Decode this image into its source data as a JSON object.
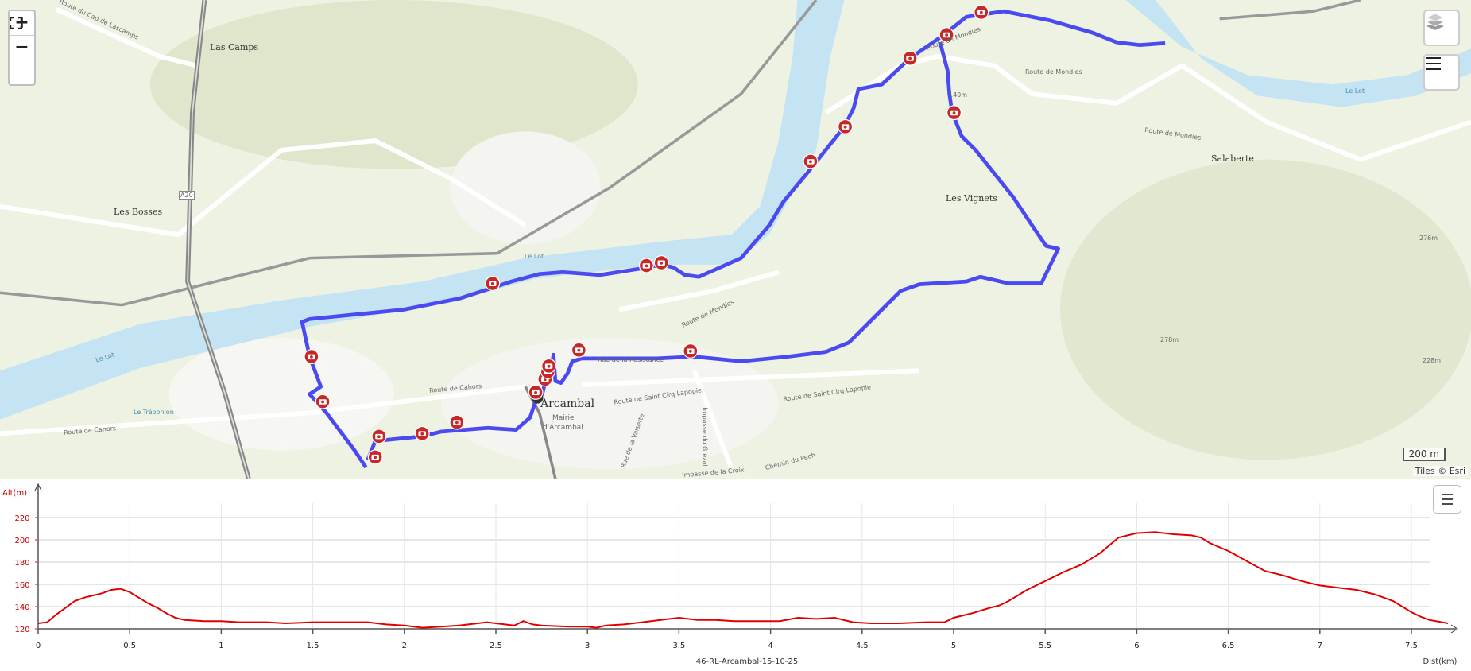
{
  "map": {
    "controls": {
      "zoom_in": "+",
      "zoom_out": "−",
      "fullscreen_icon": "fullscreen-icon",
      "layers_icon": "layers-icon",
      "menu_icon": "menu-icon"
    },
    "places": {
      "las_camps": "Las Camps",
      "les_bosses": "Les Bosses",
      "les_vignets": "Les Vignets",
      "salaberte": "Salaberte",
      "arcambal": "Arcambal",
      "mairie": "Mairie",
      "mairie2": "d'Arcambal"
    },
    "roads": {
      "cap": "Route du Cap de Lascamps",
      "a20": "A20",
      "cahors1": "Route de Cahors",
      "cahors2": "Route de Cahors",
      "mondies1": "Route de Mondies",
      "mondies2": "Route de Mondies",
      "mondies3": "Route de Mondies",
      "mondies4": "Route de Mondies",
      "resistance": "Rue de la Résistance",
      "stcirq1": "Route de Saint Cirq Lapopie",
      "stcirq2": "Route de Saint Cirq Lapopie",
      "croix": "Impasse de la Croix",
      "pech": "Chemin du Pech",
      "lot1": "Le Lot",
      "lot2": "Le Lot",
      "lot3": "Le Lot",
      "trebonlon": "Le Trébonlon",
      "valsette": "Rue de la Valsette",
      "grezal": "Impasse du Grézal"
    },
    "elevations": {
      "e1": "140m",
      "e2": "276m",
      "e3": "278m",
      "e4": "228m"
    },
    "scale": "200 m",
    "attribution": "Tiles © Esri",
    "track_color": "#4a4af0",
    "marker_color": "#c62828",
    "marker_icon": "camera-icon"
  },
  "chart_data": {
    "type": "line",
    "title": "46-RL-Arcambal-15-10-25",
    "xlabel": "Dist(km)",
    "ylabel": "Alt(m)",
    "xlim": [
      0,
      7.75
    ],
    "ylim": [
      120,
      230
    ],
    "xticks": [
      0,
      0.5,
      1,
      1.5,
      2,
      2.5,
      3,
      3.5,
      4,
      4.5,
      5,
      5.5,
      6,
      6.5,
      7,
      7.5
    ],
    "yticks": [
      120,
      140,
      160,
      180,
      200,
      220
    ],
    "grid": true,
    "color": "#e00000",
    "series": [
      {
        "x": [
          0,
          0.05,
          0.1,
          0.15,
          0.2,
          0.25,
          0.3,
          0.35,
          0.4,
          0.45,
          0.5,
          0.55,
          0.6,
          0.65,
          0.7,
          0.75,
          0.8,
          0.9,
          1,
          1.1,
          1.25,
          1.35,
          1.5,
          1.6,
          1.75,
          1.8,
          1.9,
          2,
          2.1,
          2.2,
          2.3,
          2.4,
          2.45,
          2.55,
          2.6,
          2.65,
          2.7,
          2.75,
          2.9,
          3,
          3.05,
          3.1,
          3.2,
          3.3,
          3.4,
          3.5,
          3.6,
          3.7,
          3.8,
          3.9,
          4,
          4.05,
          4.15,
          4.25,
          4.35,
          4.45,
          4.55,
          4.7,
          4.85,
          4.95,
          5,
          5.1,
          5.2,
          5.25,
          5.3,
          5.4,
          5.5,
          5.6,
          5.7,
          5.75,
          5.8,
          5.85,
          5.9,
          6,
          6.1,
          6.2,
          6.3,
          6.35,
          6.4,
          6.5,
          6.6,
          6.7,
          6.8,
          6.9,
          7,
          7.1,
          7.2,
          7.3,
          7.4,
          7.5,
          7.55,
          7.6,
          7.7
        ],
        "y": [
          125,
          126,
          133,
          139,
          145,
          148,
          150,
          152,
          155,
          156,
          153,
          148,
          143,
          139,
          134,
          130,
          128,
          127,
          127,
          126,
          126,
          125,
          126,
          126,
          126,
          126,
          124,
          123,
          121,
          122,
          123,
          125,
          126,
          124,
          123,
          127,
          124,
          123,
          122,
          122,
          121,
          123,
          124,
          126,
          128,
          130,
          128,
          128,
          127,
          127,
          127,
          127,
          130,
          129,
          130,
          126,
          125,
          125,
          126,
          126,
          130,
          134,
          139,
          141,
          145,
          155,
          163,
          171,
          178,
          183,
          188,
          195,
          202,
          206,
          207,
          205,
          204,
          202,
          197,
          190,
          181,
          172,
          168,
          163,
          159,
          157,
          155,
          151,
          145,
          135,
          131,
          128,
          125
        ]
      }
    ]
  }
}
